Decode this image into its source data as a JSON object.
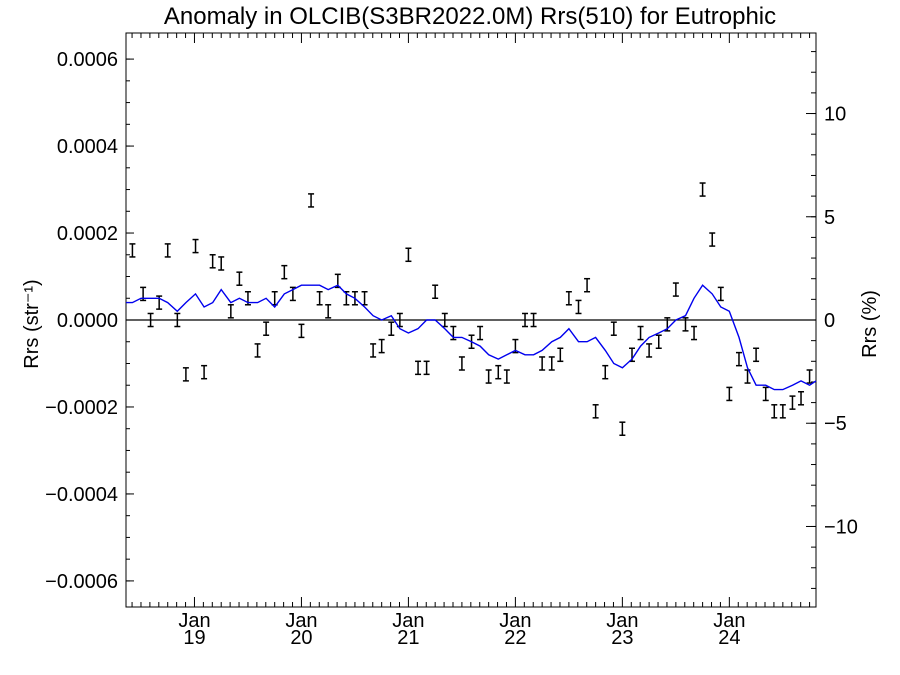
{
  "chart_data": {
    "type": "line",
    "title": "Anomaly in OLCIB(S3BR2022.0M) Rrs(510) for Eutrophic",
    "ylabel": "Rrs (str⁻¹)",
    "y2label": "Rrs (%)",
    "xlabel": "",
    "ylim": [
      -0.00066,
      0.00066
    ],
    "y2lim": [
      -13.9,
      13.9
    ],
    "xlim": [
      2018.36,
      2024.81
    ],
    "y_ticks": [
      -0.0006,
      -0.0004,
      -0.0002,
      0.0,
      0.0002,
      0.0004,
      0.0006
    ],
    "y_tick_labels": [
      "−0.0006",
      "−0.0004",
      "−0.0002",
      "0.0000",
      "0.0002",
      "0.0004",
      "0.0006"
    ],
    "y2_ticks": [
      -10,
      -5,
      0,
      5,
      10
    ],
    "y2_tick_labels": [
      "−10",
      "−5",
      "0",
      "5",
      "10"
    ],
    "x_ticks": [
      {
        "x": 2019.0,
        "month": "Jan",
        "year": "19"
      },
      {
        "x": 2020.0,
        "month": "Jan",
        "year": "20"
      },
      {
        "x": 2021.0,
        "month": "Jan",
        "year": "21"
      },
      {
        "x": 2022.0,
        "month": "Jan",
        "year": "22"
      },
      {
        "x": 2023.0,
        "month": "Jan",
        "year": "23"
      },
      {
        "x": 2024.0,
        "month": "Jan",
        "year": "24"
      }
    ],
    "grid": false,
    "zero_line": true,
    "colors": {
      "line": "#0000ee",
      "points": "#000000",
      "axes": "#000000"
    },
    "series": [
      {
        "kind": "errorbar_points",
        "x": [
          2018.42,
          2018.52,
          2018.59,
          2018.67,
          2018.75,
          2018.84,
          2018.92,
          2019.01,
          2019.09,
          2019.17,
          2019.25,
          2019.34,
          2019.42,
          2019.5,
          2019.59,
          2019.67,
          2019.75,
          2019.84,
          2019.92,
          2020.0,
          2020.09,
          2020.17,
          2020.25,
          2020.34,
          2020.42,
          2020.5,
          2020.59,
          2020.67,
          2020.75,
          2020.84,
          2020.92,
          2021.0,
          2021.09,
          2021.17,
          2021.25,
          2021.34,
          2021.42,
          2021.5,
          2021.59,
          2021.67,
          2021.75,
          2021.84,
          2021.92,
          2022.0,
          2022.09,
          2022.17,
          2022.25,
          2022.34,
          2022.42,
          2022.5,
          2022.59,
          2022.67,
          2022.75,
          2022.84,
          2022.92,
          2023.0,
          2023.09,
          2023.17,
          2023.25,
          2023.34,
          2023.42,
          2023.5,
          2023.59,
          2023.67,
          2023.75,
          2023.84,
          2023.92,
          2024.0,
          2024.09,
          2024.17,
          2024.25,
          2024.34,
          2024.42,
          2024.5,
          2024.59,
          2024.67,
          2024.75
        ],
        "y": [
          0.00016,
          6e-05,
          0.0,
          4e-05,
          0.00016,
          0.0,
          -0.000125,
          0.00017,
          -0.00012,
          0.000135,
          0.00013,
          2e-05,
          9.5e-05,
          5e-05,
          -7e-05,
          -2e-05,
          5e-05,
          0.00011,
          6e-05,
          -2.5e-05,
          0.000275,
          5e-05,
          2e-05,
          9e-05,
          5e-05,
          5e-05,
          5e-05,
          -7e-05,
          -6e-05,
          -2e-05,
          0.0,
          0.00015,
          -0.00011,
          -0.00011,
          6.5e-05,
          0.0,
          -3e-05,
          -0.0001,
          -5e-05,
          -3e-05,
          -0.00013,
          -0.00012,
          -0.00013,
          -6e-05,
          0.0,
          0.0,
          -0.0001,
          -0.0001,
          -8e-05,
          5e-05,
          3e-05,
          8e-05,
          -0.00021,
          -0.00012,
          -2e-05,
          -0.00025,
          -8e-05,
          -3e-05,
          -7e-05,
          -5e-05,
          -1e-05,
          7e-05,
          -1e-05,
          -3e-05,
          0.0003,
          0.000185,
          6e-05,
          -0.00017,
          -9e-05,
          -0.00013,
          -8e-05,
          -0.00017,
          -0.00021,
          -0.00021,
          -0.00019,
          -0.00018,
          -0.00013
        ],
        "err": 1.5e-05
      },
      {
        "kind": "line",
        "x": [
          2018.36,
          2018.42,
          2018.5,
          2018.59,
          2018.67,
          2018.75,
          2018.84,
          2018.92,
          2019.01,
          2019.09,
          2019.17,
          2019.25,
          2019.34,
          2019.42,
          2019.5,
          2019.59,
          2019.67,
          2019.75,
          2019.84,
          2019.92,
          2020.0,
          2020.09,
          2020.17,
          2020.25,
          2020.34,
          2020.42,
          2020.5,
          2020.59,
          2020.67,
          2020.75,
          2020.84,
          2020.92,
          2021.0,
          2021.09,
          2021.17,
          2021.25,
          2021.34,
          2021.42,
          2021.5,
          2021.59,
          2021.67,
          2021.75,
          2021.84,
          2021.92,
          2022.0,
          2022.09,
          2022.17,
          2022.25,
          2022.34,
          2022.42,
          2022.5,
          2022.59,
          2022.67,
          2022.75,
          2022.84,
          2022.92,
          2023.0,
          2023.09,
          2023.17,
          2023.25,
          2023.34,
          2023.42,
          2023.5,
          2023.59,
          2023.67,
          2023.75,
          2023.84,
          2023.92,
          2024.0,
          2024.09,
          2024.17,
          2024.25,
          2024.34,
          2024.42,
          2024.5,
          2024.59,
          2024.67,
          2024.75,
          2024.81
        ],
        "y": [
          4e-05,
          4e-05,
          5e-05,
          5e-05,
          5e-05,
          4e-05,
          2e-05,
          4e-05,
          6e-05,
          3e-05,
          4e-05,
          7e-05,
          4e-05,
          5e-05,
          4e-05,
          4e-05,
          5e-05,
          3e-05,
          6e-05,
          7e-05,
          8e-05,
          8e-05,
          8e-05,
          7e-05,
          8e-05,
          6e-05,
          5e-05,
          3e-05,
          1e-05,
          0.0,
          1e-05,
          -2e-05,
          -3e-05,
          -2e-05,
          0.0,
          0.0,
          -2e-05,
          -4e-05,
          -4e-05,
          -5e-05,
          -6e-05,
          -8e-05,
          -9e-05,
          -8e-05,
          -7e-05,
          -8e-05,
          -8e-05,
          -7e-05,
          -5e-05,
          -4e-05,
          -2e-05,
          -5e-05,
          -5e-05,
          -4e-05,
          -7e-05,
          -0.0001,
          -0.00011,
          -9e-05,
          -6e-05,
          -4e-05,
          -3e-05,
          -2e-05,
          0.0,
          1e-05,
          5e-05,
          8e-05,
          6e-05,
          3e-05,
          2e-05,
          -4e-05,
          -0.00011,
          -0.00015,
          -0.00015,
          -0.00016,
          -0.00016,
          -0.00015,
          -0.00014,
          -0.00015,
          -0.00014
        ]
      }
    ]
  }
}
